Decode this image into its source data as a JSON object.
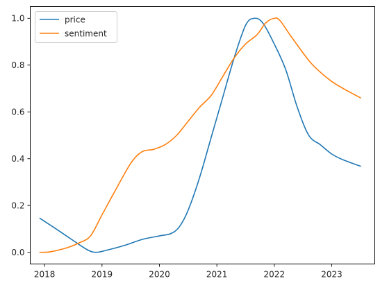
{
  "chart_data": {
    "type": "line",
    "title": "",
    "xlabel": "",
    "ylabel": "",
    "xlim": [
      2017.75,
      2023.75
    ],
    "ylim": [
      -0.05,
      1.05
    ],
    "x_ticks": [
      2018,
      2019,
      2020,
      2021,
      2022,
      2023
    ],
    "x_tick_labels": [
      "2018",
      "2019",
      "2020",
      "2021",
      "2022",
      "2023"
    ],
    "y_ticks": [
      0.0,
      0.2,
      0.4,
      0.6,
      0.8,
      1.0
    ],
    "y_tick_labels": [
      "0.0",
      "0.2",
      "0.4",
      "0.6",
      "0.8",
      "1.0"
    ],
    "grid": false,
    "legend_position": "upper left",
    "series": [
      {
        "name": "price",
        "color": "#1f77b4",
        "x": [
          2017.92,
          2018.2,
          2018.5,
          2018.75,
          2018.9,
          2019.1,
          2019.4,
          2019.7,
          2020.0,
          2020.2,
          2020.35,
          2020.5,
          2020.7,
          2020.9,
          2021.1,
          2021.3,
          2021.5,
          2021.65,
          2021.8,
          2022.0,
          2022.2,
          2022.4,
          2022.6,
          2022.8,
          2023.0,
          2023.2,
          2023.5
        ],
        "y": [
          0.145,
          0.1,
          0.05,
          0.01,
          0.0,
          0.01,
          0.03,
          0.055,
          0.07,
          0.08,
          0.11,
          0.18,
          0.32,
          0.49,
          0.66,
          0.83,
          0.97,
          1.0,
          0.98,
          0.89,
          0.78,
          0.62,
          0.5,
          0.46,
          0.42,
          0.395,
          0.368
        ]
      },
      {
        "name": "sentiment",
        "color": "#ff7f0e",
        "x": [
          2017.92,
          2018.1,
          2018.4,
          2018.6,
          2018.8,
          2019.0,
          2019.2,
          2019.5,
          2019.7,
          2019.9,
          2020.1,
          2020.3,
          2020.5,
          2020.7,
          2020.9,
          2021.1,
          2021.3,
          2021.5,
          2021.7,
          2021.85,
          2022.0,
          2022.1,
          2022.3,
          2022.6,
          2022.8,
          2023.0,
          2023.2,
          2023.5
        ],
        "y": [
          0.0,
          0.002,
          0.02,
          0.04,
          0.07,
          0.16,
          0.25,
          0.38,
          0.43,
          0.44,
          0.46,
          0.5,
          0.56,
          0.62,
          0.67,
          0.75,
          0.83,
          0.89,
          0.93,
          0.98,
          1.0,
          0.99,
          0.92,
          0.82,
          0.77,
          0.73,
          0.7,
          0.66
        ]
      }
    ]
  }
}
